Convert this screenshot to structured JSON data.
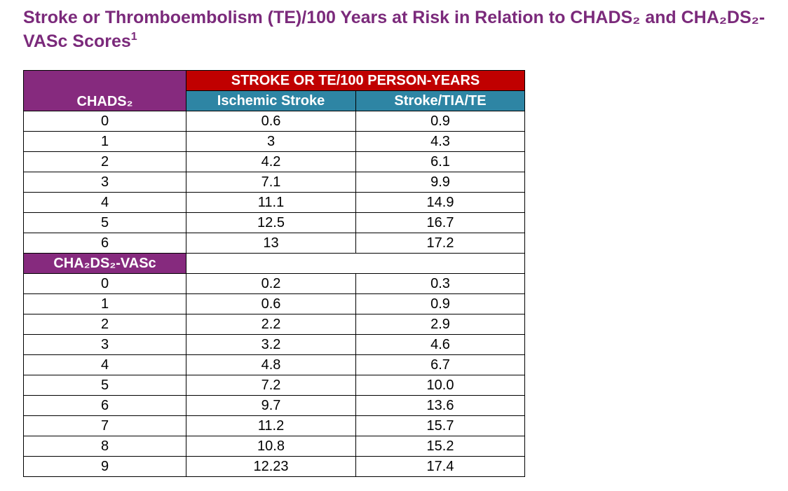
{
  "title": "Stroke or Thromboembolism (TE)/100 Years at Risk in Relation to CHADS₂ and CHA₂DS₂-VASc Scores",
  "title_footnote": "1",
  "table": {
    "group_header": "STROKE OR TE/100 PERSON-YEARS",
    "columns": [
      "Ischemic Stroke",
      "Stroke/TIA/TE"
    ],
    "sections": [
      {
        "label": "CHADS₂",
        "rows": [
          [
            "0",
            "0.6",
            "0.9"
          ],
          [
            "1",
            "3",
            "4.3"
          ],
          [
            "2",
            "4.2",
            "6.1"
          ],
          [
            "3",
            "7.1",
            "9.9"
          ],
          [
            "4",
            "11.1",
            "14.9"
          ],
          [
            "5",
            "12.5",
            "16.7"
          ],
          [
            "6",
            "13",
            "17.2"
          ]
        ]
      },
      {
        "label": "CHA₂DS₂-VASc",
        "rows": [
          [
            "0",
            "0.2",
            "0.3"
          ],
          [
            "1",
            "0.6",
            "0.9"
          ],
          [
            "2",
            "2.2",
            "2.9"
          ],
          [
            "3",
            "3.2",
            "4.6"
          ],
          [
            "4",
            "4.8",
            "6.7"
          ],
          [
            "5",
            "7.2",
            "10.0"
          ],
          [
            "6",
            "9.7",
            "13.6"
          ],
          [
            "7",
            "11.2",
            "15.7"
          ],
          [
            "8",
            "10.8",
            "15.2"
          ],
          [
            "9",
            "12.23",
            "17.4"
          ]
        ]
      }
    ]
  }
}
